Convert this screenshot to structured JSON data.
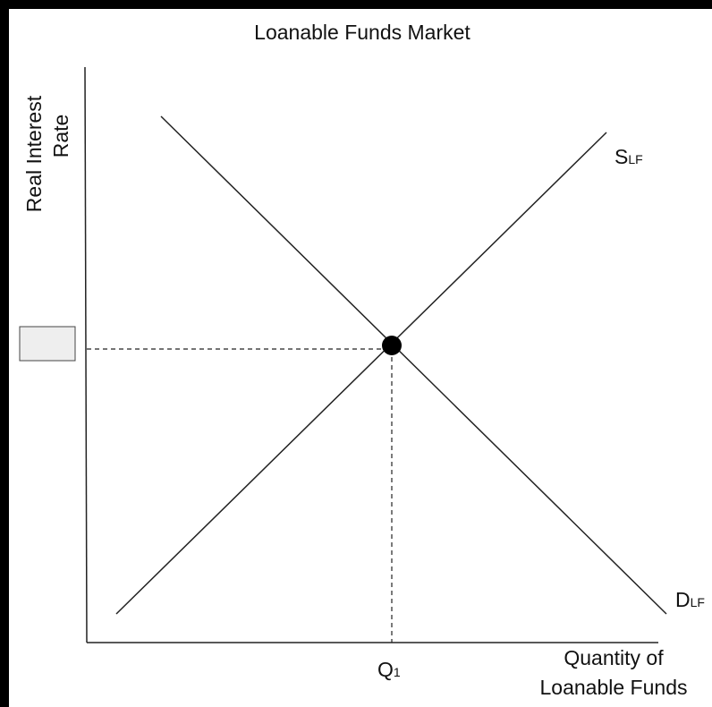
{
  "title": "Loanable Funds Market",
  "y_axis_label": [
    "Real Interest",
    "Rate"
  ],
  "x_axis_label": [
    "Quantity of",
    "Loanable Funds"
  ],
  "curves": [
    {
      "label": "S",
      "subscript": "LF"
    },
    {
      "label": "D",
      "subscript": "LF"
    }
  ],
  "equilibrium": {
    "quantity_label": "Q",
    "subscript": "1"
  }
}
